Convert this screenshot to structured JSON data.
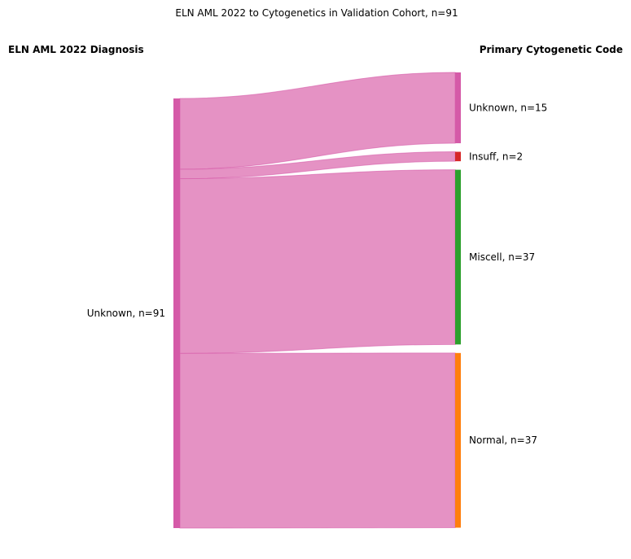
{
  "chart_data": {
    "type": "sankey",
    "title": "ELN AML 2022 to Cytogenetics in Validation Cohort, n=91",
    "left_header": "ELN AML 2022 Diagnosis",
    "right_header": "Primary Cytogenetic Code",
    "left_nodes": [
      {
        "name": "Unknown",
        "value": 91,
        "label": "Unknown, n=91",
        "color": "#d55aa8"
      }
    ],
    "right_nodes": [
      {
        "name": "Unknown",
        "value": 15,
        "label": "Unknown, n=15",
        "color": "#d55aa8"
      },
      {
        "name": "Insuff",
        "value": 2,
        "label": "Insuff, n=2",
        "color": "#d62728"
      },
      {
        "name": "Miscell",
        "value": 37,
        "label": "Miscell, n=37",
        "color": "#2ca02c"
      },
      {
        "name": "Normal",
        "value": 37,
        "label": "Normal, n=37",
        "color": "#ff7f0e"
      }
    ],
    "flows": [
      {
        "source": "Unknown",
        "target": "Unknown",
        "value": 15
      },
      {
        "source": "Unknown",
        "target": "Insuff",
        "value": 2
      },
      {
        "source": "Unknown",
        "target": "Miscell",
        "value": 37
      },
      {
        "source": "Unknown",
        "target": "Normal",
        "value": 37
      }
    ],
    "flow_color": "#e592c4",
    "flow_edge_color": "#d55aa8"
  }
}
